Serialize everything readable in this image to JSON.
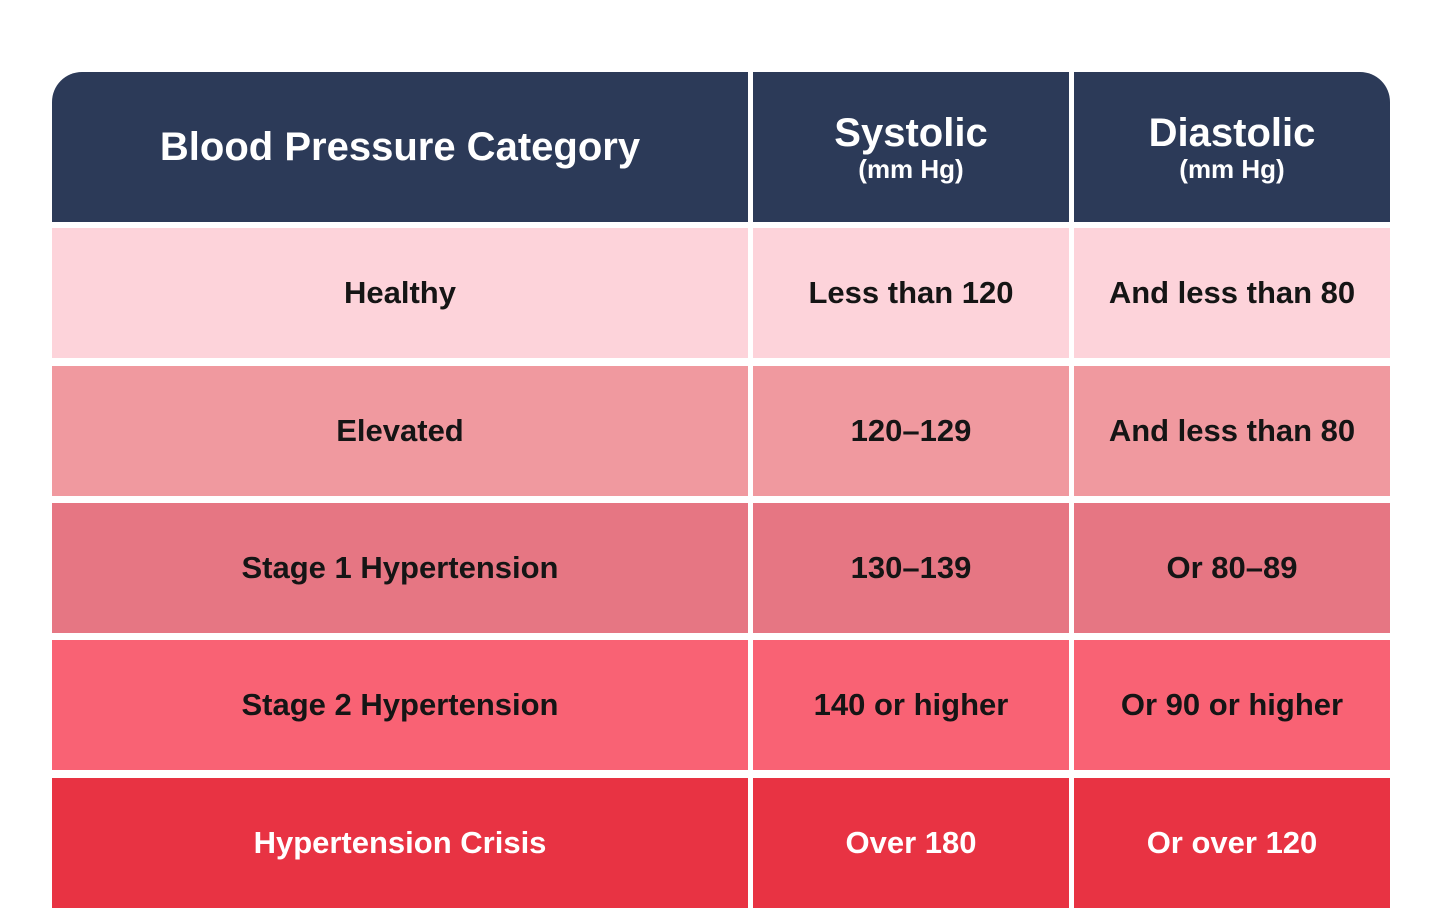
{
  "table": {
    "header": [
      {
        "title": "Blood Pressure Category"
      },
      {
        "title": "Systolic",
        "unit": "(mm Hg)"
      },
      {
        "title": "Diastolic",
        "unit": "(mm Hg)"
      }
    ],
    "rows": [
      [
        "Healthy",
        "Less than 120",
        "And less than 80"
      ],
      [
        "Elevated",
        "120–129",
        "And less than 80"
      ],
      [
        "Stage 1 Hypertension",
        "130–139",
        "Or 80–89"
      ],
      [
        "Stage 2 Hypertension",
        "140 or higher",
        "Or 90 or higher"
      ],
      [
        "Hypertension Crisis",
        "Over 180",
        "Or over 120"
      ]
    ]
  }
}
